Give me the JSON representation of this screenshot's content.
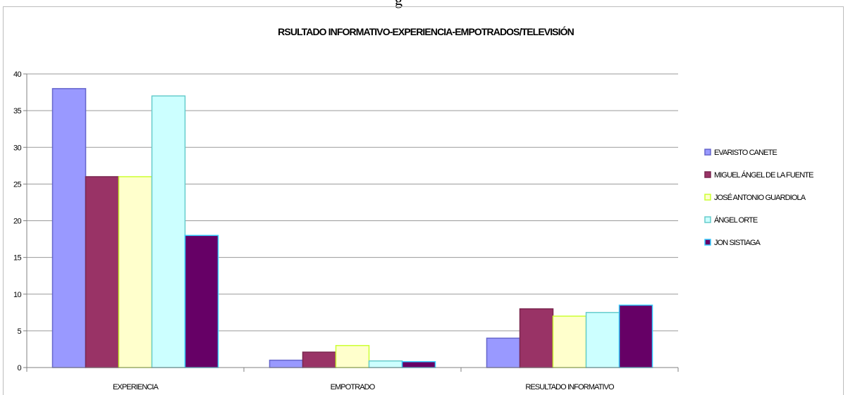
{
  "caption_fragment": "g",
  "chart_data": {
    "type": "bar",
    "title": "RSULTADO INFORMATIVO-EXPERIENCIA-EMPOTRADOS/TELEVISIÓN",
    "categories": [
      "EXPERIENCIA",
      "EMPOTRADO",
      "RESULTADO INFORMATIVO"
    ],
    "yticks": [
      "0",
      "5",
      "10",
      "15",
      "20",
      "25",
      "30",
      "35",
      "40"
    ],
    "ylim": [
      0,
      40
    ],
    "grid": true,
    "legend_position": "right",
    "series": [
      {
        "name": "EVARISTO CANETE",
        "values": [
          38,
          1,
          4
        ],
        "color": "#9999ff"
      },
      {
        "name": "MIGUEL ÁNGEL DE LA FUENTE",
        "values": [
          26,
          2.1,
          8
        ],
        "color": "#993366"
      },
      {
        "name": "JOSÉ ANTONIO GUARDIOLA",
        "values": [
          26,
          3,
          7
        ],
        "color": "#ffffcc"
      },
      {
        "name": "ÁNGEL ORTE",
        "values": [
          37,
          0.9,
          7.5
        ],
        "color": "#ccffff"
      },
      {
        "name": "JON SISTIAGA",
        "values": [
          18,
          0.8,
          8.5
        ],
        "color": "#660066"
      }
    ],
    "series_border_colors": [
      "#6666cc",
      "#7a2850",
      "#ccff33",
      "#66cccc",
      "#33ccff"
    ]
  }
}
